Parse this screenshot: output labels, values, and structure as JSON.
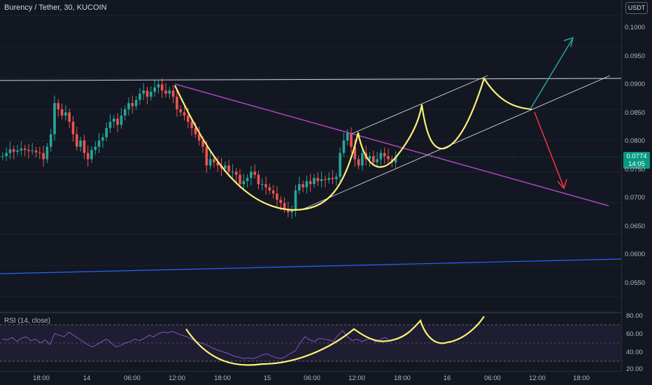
{
  "header": {
    "symbol_title": "Burency / Tether, 30, KUCOIN",
    "currency_badge": "USDT"
  },
  "price_tag": {
    "price": "0.0774",
    "countdown": "14:05",
    "color": "#089981"
  },
  "price_axis": {
    "ticks": [
      "0.1000",
      "0.0950",
      "0.0900",
      "0.0850",
      "0.0800",
      "0.0750",
      "0.0700",
      "0.0650",
      "0.0600",
      "0.0550"
    ]
  },
  "rsi_panel": {
    "title": "RSI (14, close)",
    "ticks": [
      "80.00",
      "60.00",
      "40.00",
      "20.00"
    ]
  },
  "time_axis": {
    "ticks": [
      "18:00",
      "14",
      "06:00",
      "12:00",
      "18:00",
      "15",
      "06:00",
      "12:00",
      "18:00",
      "16",
      "06:00",
      "12:00",
      "18:00"
    ]
  },
  "colors": {
    "background": "#131722",
    "up_candle": "#26a69a",
    "down_candle": "#ef5350",
    "pattern_curve": "#fff176",
    "trendline": "#ab47bc",
    "channel": "#d1d4dc",
    "support_line": "#2962ff",
    "bull_arrow": "#26a69a",
    "bear_arrow": "#f23645"
  },
  "chart_data": {
    "type": "candlestick",
    "title": "Burency / Tether, 30, KUCOIN",
    "ylim": [
      0.0525,
      0.1025
    ],
    "close_series": [
      0.0775,
      0.078,
      0.0786,
      0.0782,
      0.0784,
      0.0787,
      0.0785,
      0.0783,
      0.0784,
      0.0781,
      0.078,
      0.077,
      0.079,
      0.081,
      0.086,
      0.085,
      0.084,
      0.0845,
      0.083,
      0.081,
      0.079,
      0.08,
      0.078,
      0.077,
      0.0785,
      0.079,
      0.08,
      0.0805,
      0.082,
      0.083,
      0.0835,
      0.0825,
      0.084,
      0.085,
      0.086,
      0.0855,
      0.0865,
      0.0875,
      0.088,
      0.087,
      0.0878,
      0.0885,
      0.089,
      0.088,
      0.0875,
      0.088,
      0.087,
      0.085,
      0.0845,
      0.084,
      0.083,
      0.082,
      0.081,
      0.08,
      0.079,
      0.076,
      0.077,
      0.0765,
      0.076,
      0.0755,
      0.076,
      0.075,
      0.075,
      0.0745,
      0.073,
      0.0735,
      0.074,
      0.075,
      0.0745,
      0.073,
      0.073,
      0.0725,
      0.072,
      0.0715,
      0.0705,
      0.07,
      0.069,
      0.0685,
      0.069,
      0.072,
      0.073,
      0.0725,
      0.0735,
      0.073,
      0.074,
      0.0735,
      0.0738,
      0.0737,
      0.074,
      0.0738,
      0.0742,
      0.078,
      0.08,
      0.0812,
      0.079,
      0.077,
      0.076,
      0.078,
      0.077,
      0.0775,
      0.0765,
      0.077,
      0.078,
      0.0775,
      0.077,
      0.0765,
      0.0774
    ],
    "rsi_values": [
      55,
      54,
      57,
      52,
      56,
      58,
      53,
      55,
      50,
      54,
      48,
      62,
      60,
      58,
      64,
      60,
      56,
      52,
      48,
      45,
      48,
      52,
      55,
      50,
      45,
      47,
      50,
      52,
      55,
      53,
      56,
      60,
      58,
      62,
      64,
      63,
      65,
      62,
      60,
      58,
      55,
      52,
      50,
      48,
      45,
      42,
      40,
      38,
      36,
      33,
      32,
      30,
      31,
      30,
      32,
      35,
      36,
      33,
      31,
      30,
      33,
      37,
      40,
      50,
      58,
      54,
      52,
      56,
      55,
      54,
      52,
      60,
      66,
      58,
      53,
      55,
      52,
      54,
      56,
      51,
      55,
      57,
      52,
      55
    ],
    "levels": {
      "resistance": 0.091,
      "support": 0.058,
      "current": 0.0774
    },
    "rsi_ylim": [
      15,
      85
    ],
    "rsi_band": [
      30,
      70
    ],
    "annotations": [
      "cup and handle pattern",
      "ascending channel",
      "descending trendline",
      "bullish target arrow",
      "bearish target arrow"
    ]
  }
}
